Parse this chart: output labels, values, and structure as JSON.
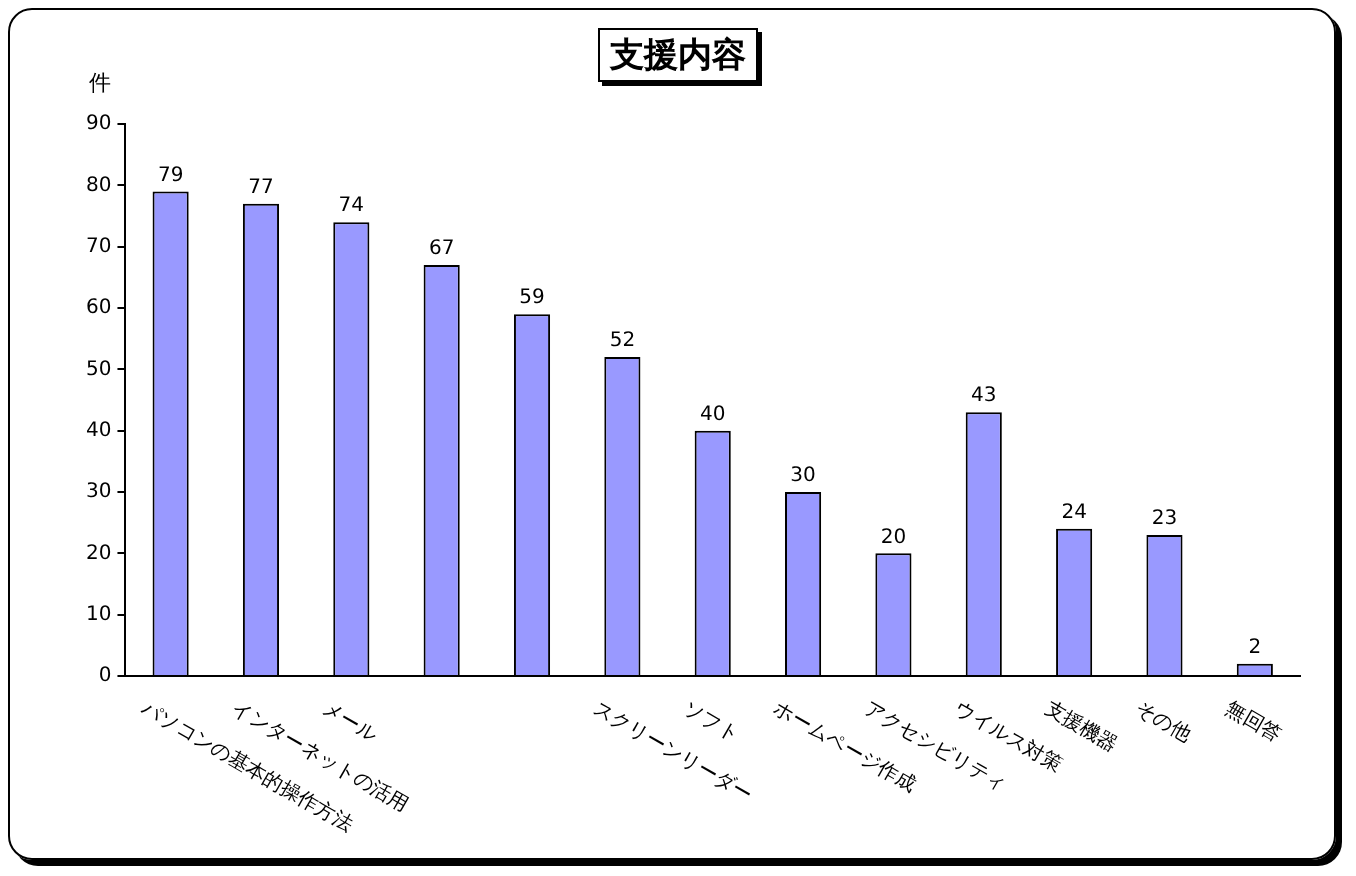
{
  "chart_data": {
    "type": "bar",
    "title": "支援内容",
    "ylabel": "件",
    "categories": [
      "パソコンの基本的操作方法",
      "インターネットの活用",
      "メール",
      null,
      null,
      "スクリーンリーダー",
      "ソフト",
      "ホームページ作成",
      "アクセシビリティ",
      "ウイルス対策",
      "支援機器",
      "その他",
      "無回答"
    ],
    "values": [
      79,
      77,
      74,
      67,
      59,
      52,
      40,
      30,
      20,
      43,
      24,
      23,
      2
    ],
    "color": "#9999ff",
    "ylim": [
      0,
      90
    ],
    "yticks": [
      0,
      10,
      20,
      30,
      40,
      50,
      60,
      70,
      80,
      90
    ],
    "grid": false,
    "legend": false,
    "data_labels": true
  }
}
